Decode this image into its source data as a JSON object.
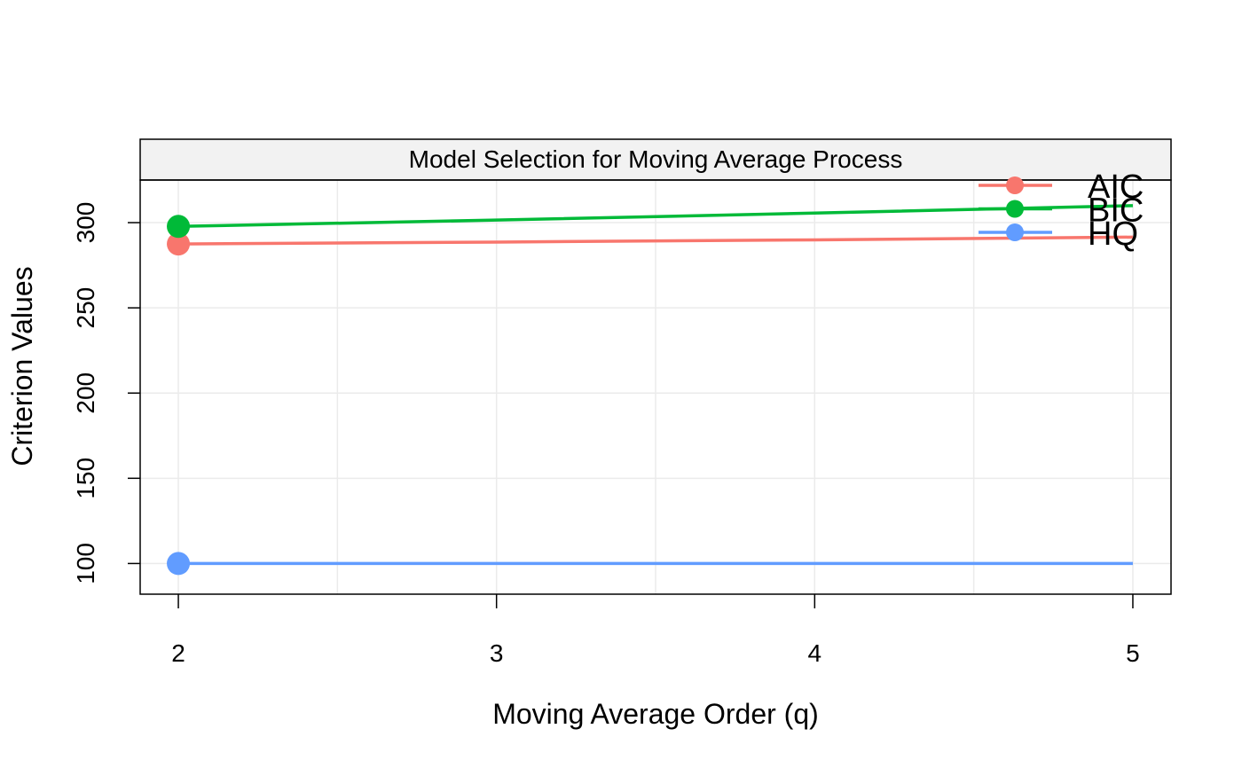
{
  "chart_data": {
    "type": "line",
    "title": "Model Selection for Moving Average Process",
    "xlabel": "Moving Average Order (q)",
    "ylabel": "Criterion Values",
    "x": [
      2,
      3,
      4,
      5
    ],
    "xlim": [
      1.88,
      5.12
    ],
    "ylim": [
      82,
      325
    ],
    "x_ticks": [
      2,
      3,
      4,
      5
    ],
    "y_ticks": [
      100,
      150,
      200,
      250,
      300
    ],
    "grid": true,
    "legend_position": "top-right",
    "series": [
      {
        "name": "AIC",
        "color": "#F8766D",
        "values": [
          287.5,
          288.6,
          289.9,
          291.5
        ]
      },
      {
        "name": "BIC",
        "color": "#00BA38",
        "values": [
          297.8,
          301.5,
          305.6,
          310.0
        ]
      },
      {
        "name": "HQ",
        "color": "#619CFF",
        "values": [
          100,
          100,
          100,
          100
        ]
      }
    ]
  }
}
